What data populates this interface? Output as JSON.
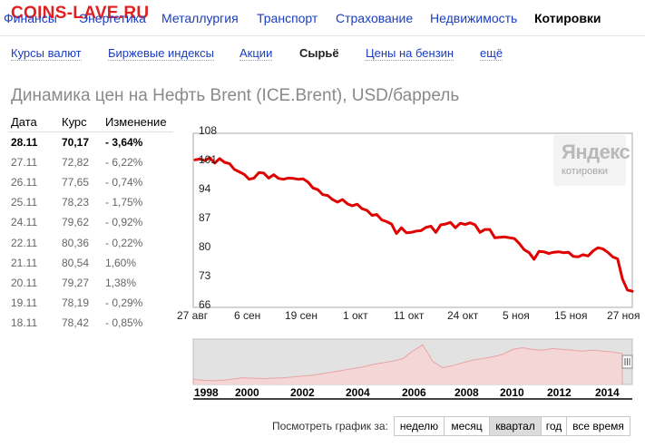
{
  "watermark": "COINS-LAVE.RU",
  "topnav": {
    "items": [
      "Финансы",
      "Энергетика",
      "Металлургия",
      "Транспорт",
      "Страхование",
      "Недвижимость",
      "Котировки"
    ]
  },
  "subnav": {
    "items": [
      "Курсы валют",
      "Биржевые индексы",
      "Акции",
      "Сырьё",
      "Цены на бензин",
      "ещё"
    ]
  },
  "title": "Динамика цен на Нефть Brent (ICE.Brent), USD/баррель",
  "table": {
    "headers": [
      "Дата",
      "Курс",
      "Изменение"
    ],
    "rows": [
      [
        "28.11",
        "70,17",
        "- 3,64%"
      ],
      [
        "27.11",
        "72,82",
        "- 6,22%"
      ],
      [
        "26.11",
        "77,65",
        "- 0,74%"
      ],
      [
        "25.11",
        "78,23",
        "- 1,75%"
      ],
      [
        "24.11",
        "79,62",
        "- 0,92%"
      ],
      [
        "22.11",
        "80,36",
        "- 0,22%"
      ],
      [
        "21.11",
        "80,54",
        "1,60%"
      ],
      [
        "20.11",
        "79,27",
        "1,38%"
      ],
      [
        "19.11",
        "78,19",
        "- 0,29%"
      ],
      [
        "18.11",
        "78,42",
        "- 0,85%"
      ]
    ]
  },
  "logo": {
    "line1": "Яндекс",
    "line2": "котировки"
  },
  "chart_data": {
    "type": "line",
    "ylim": [
      66,
      108
    ],
    "yticks": [
      "108",
      "101",
      "94",
      "87",
      "80",
      "73",
      "66"
    ],
    "xticks": [
      "27 авг",
      "6 сен",
      "19 сен",
      "1 окт",
      "11 окт",
      "24 окт",
      "5 ноя",
      "15 ноя",
      "27 ноя"
    ],
    "series": [
      {
        "color": "#e00000",
        "values": [
          101.6,
          101.8,
          101.4,
          102.1,
          100.8,
          101.9,
          101.0,
          100.7,
          99.3,
          98.7,
          98.1,
          96.9,
          97.2,
          98.5,
          98.4,
          97.2,
          98.0,
          97.1,
          96.9,
          97.2,
          97.1,
          96.9,
          97.0,
          96.2,
          94.8,
          94.4,
          93.2,
          93.0,
          92.0,
          91.4,
          92.0,
          91.0,
          90.5,
          90.9,
          89.8,
          89.4,
          88.2,
          88.4,
          87.1,
          86.7,
          86.1,
          83.8,
          85.2,
          84.0,
          84.1,
          84.4,
          84.5,
          85.3,
          85.6,
          84.1,
          85.9,
          86.1,
          86.5,
          85.2,
          86.3,
          86.0,
          86.4,
          85.9,
          84.1,
          84.8,
          84.8,
          82.8,
          82.9,
          83.0,
          82.8,
          82.6,
          81.4,
          79.9,
          79.2,
          77.6,
          79.5,
          79.4,
          79.0,
          79.3,
          79.4,
          79.2,
          79.3,
          78.3,
          78.2,
          78.7,
          78.4,
          79.6,
          80.4,
          80.1,
          79.3,
          78.2,
          77.7,
          72.8,
          70.2,
          69.9
        ]
      }
    ]
  },
  "overview": {
    "years": [
      "1998",
      "2000",
      "2002",
      "2004",
      "2006",
      "2008",
      "2010",
      "2012",
      "2014"
    ]
  },
  "periods": {
    "label": "Посмотреть график за:",
    "buttons": [
      "неделю",
      "месяц",
      "квартал",
      "год",
      "все время"
    ],
    "active": "квартал"
  }
}
